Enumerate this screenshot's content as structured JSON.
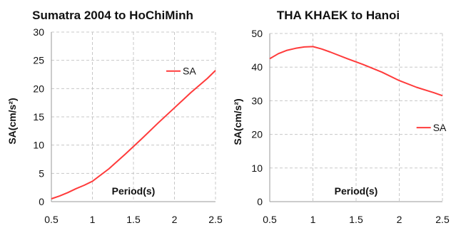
{
  "colors": {
    "series": "#ff3b3b",
    "grid": "#c8c8c8",
    "axis": "#9a9a9a"
  },
  "chart_data": [
    {
      "type": "line",
      "title": "Sumatra 2004 to HoChiMinh",
      "xlabel": "Period(s)",
      "ylabel": "SA(cm/s²)",
      "xlim": [
        0.5,
        2.5
      ],
      "ylim": [
        0,
        30
      ],
      "xticks": [
        0.5,
        1,
        1.5,
        2,
        2.5
      ],
      "xtick_labels": [
        "0.5",
        "1",
        "1.5",
        "2",
        "2.5"
      ],
      "yticks": [
        0,
        5,
        10,
        15,
        20,
        25,
        30
      ],
      "ytick_labels": [
        "0",
        "5",
        "10",
        "15",
        "20",
        "25",
        "30"
      ],
      "grid": true,
      "legend": "upper-right-inside",
      "series": [
        {
          "name": "SA",
          "color": "#ff3b3b",
          "x": [
            0.5,
            0.6,
            0.7,
            0.8,
            0.9,
            1.0,
            1.2,
            1.4,
            1.6,
            1.8,
            2.0,
            2.2,
            2.4,
            2.5
          ],
          "y": [
            0.5,
            1.0,
            1.6,
            2.3,
            2.9,
            3.6,
            5.8,
            8.4,
            11.1,
            13.9,
            16.6,
            19.3,
            21.8,
            23.2
          ]
        }
      ]
    },
    {
      "type": "line",
      "title": "THA KHAEK to Hanoi",
      "xlabel": "Period(s)",
      "ylabel": "SA(cm/s²)",
      "xlim": [
        0.5,
        2.5
      ],
      "ylim": [
        0,
        50
      ],
      "xticks": [
        0.5,
        1,
        1.5,
        2,
        2.5
      ],
      "xtick_labels": [
        "0.5",
        "1",
        "1.5",
        "2",
        "2.5"
      ],
      "yticks": [
        0,
        10,
        20,
        30,
        40,
        50
      ],
      "ytick_labels": [
        "0",
        "10",
        "20",
        "30",
        "40",
        "50"
      ],
      "grid": true,
      "legend": "middle-right-inside",
      "series": [
        {
          "name": "SA",
          "color": "#ff3b3b",
          "x": [
            0.5,
            0.6,
            0.7,
            0.8,
            0.9,
            1.0,
            1.1,
            1.2,
            1.4,
            1.6,
            1.8,
            2.0,
            2.2,
            2.4,
            2.5
          ],
          "y": [
            42.5,
            44.0,
            45.0,
            45.6,
            46.0,
            46.1,
            45.4,
            44.5,
            42.5,
            40.6,
            38.5,
            36.0,
            34.0,
            32.4,
            31.5
          ]
        }
      ]
    }
  ]
}
